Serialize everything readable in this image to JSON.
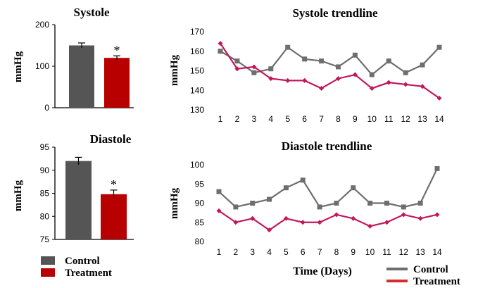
{
  "legend_bottom_left": {
    "control": "Control",
    "treatment": "Treatment"
  },
  "legend_bottom_right": {
    "control": "Control",
    "treatment": "Treatment"
  },
  "xtitle": "Time (Days)",
  "colors": {
    "control_bar": "#555555",
    "treatment_bar": "#b80000",
    "control_line": "#6e6e6e",
    "treatment_line": "#c2185b"
  },
  "chart_data": [
    {
      "id": "systole_bar",
      "type": "bar",
      "title": "Systole",
      "ylabel": "mmHg",
      "categories": [
        "Control",
        "Treatment"
      ],
      "values": [
        150,
        120
      ],
      "errors": [
        6,
        5
      ],
      "ylim": [
        0,
        200
      ],
      "yticks": [
        0,
        100,
        200
      ],
      "annotations": [
        "",
        "*"
      ]
    },
    {
      "id": "diastole_bar",
      "type": "bar",
      "title": "Diastole",
      "ylabel": "mmHg",
      "categories": [
        "Control",
        "Treatment"
      ],
      "values": [
        92,
        84.8
      ],
      "errors": [
        0.8,
        0.9
      ],
      "ylim": [
        75,
        95
      ],
      "yticks": [
        75,
        80,
        85,
        90,
        95
      ],
      "annotations": [
        "",
        "*"
      ]
    },
    {
      "id": "systole_line",
      "type": "line",
      "title": "Systole trendline",
      "ylabel": "mmHg",
      "x": [
        1,
        2,
        3,
        4,
        5,
        6,
        7,
        8,
        9,
        10,
        11,
        12,
        13,
        14
      ],
      "ylim": [
        130,
        170
      ],
      "yticks": [
        130,
        140,
        150,
        160,
        170
      ],
      "series": [
        {
          "name": "Control",
          "values": [
            160,
            155,
            149,
            151,
            162,
            156,
            155,
            152,
            158,
            148,
            155,
            149,
            153,
            162
          ]
        },
        {
          "name": "Treatment",
          "values": [
            164,
            151,
            152,
            146,
            145,
            145,
            141,
            146,
            148,
            141,
            144,
            143,
            142,
            136
          ]
        }
      ]
    },
    {
      "id": "diastole_line",
      "type": "line",
      "title": "Diastole trendline",
      "ylabel": "mmHg",
      "x": [
        1,
        2,
        3,
        4,
        5,
        6,
        7,
        8,
        9,
        10,
        11,
        12,
        13,
        14
      ],
      "ylim": [
        80,
        100
      ],
      "yticks": [
        80,
        85,
        90,
        95,
        100
      ],
      "series": [
        {
          "name": "Control",
          "values": [
            93,
            89,
            90,
            91,
            94,
            96,
            89,
            90,
            94,
            90,
            90,
            89,
            90,
            99
          ]
        },
        {
          "name": "Treatment",
          "values": [
            88,
            85,
            86,
            83,
            86,
            85,
            85,
            87,
            86,
            84,
            85,
            87,
            86,
            87
          ]
        }
      ]
    }
  ]
}
